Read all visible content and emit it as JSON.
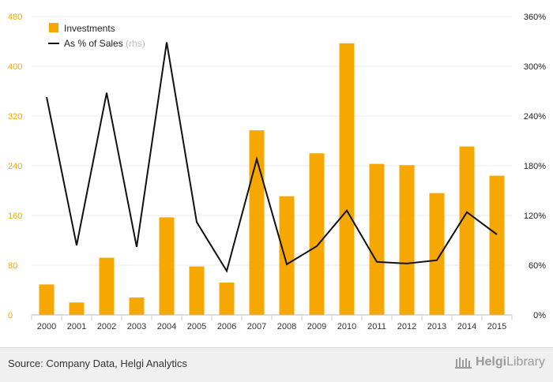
{
  "chart_data": {
    "type": "bar",
    "categories": [
      "2000",
      "2001",
      "2002",
      "2003",
      "2004",
      "2005",
      "2006",
      "2007",
      "2008",
      "2009",
      "2010",
      "2011",
      "2012",
      "2013",
      "2014",
      "2015"
    ],
    "series": [
      {
        "name": "Investments",
        "type": "bar",
        "axis": "left",
        "values": [
          49,
          20,
          92,
          28,
          157,
          78,
          52,
          297,
          191,
          260,
          437,
          243,
          241,
          196,
          271,
          224
        ]
      },
      {
        "name": "As % of Sales",
        "type": "line",
        "axis": "right",
        "values": [
          263,
          84,
          268,
          82,
          329,
          112,
          53,
          188,
          61,
          83,
          126,
          64,
          62,
          66,
          124,
          97
        ]
      }
    ],
    "legend": [
      {
        "label": "Investments",
        "suffix": ""
      },
      {
        "label": "As % of Sales",
        "suffix": " (rhs)"
      }
    ],
    "yleft": {
      "min": 0,
      "max": 480,
      "ticks": [
        "0",
        "80",
        "160",
        "240",
        "320",
        "400",
        "480"
      ]
    },
    "yright": {
      "min": 0,
      "max": 360,
      "ticks": [
        "0%",
        "60%",
        "120%",
        "180%",
        "240%",
        "300%",
        "360%"
      ]
    },
    "grid": true,
    "legend_position": "top-left",
    "colors": {
      "bar": "#f6a800",
      "line": "#111111",
      "left_axis": "#f6a800",
      "right_axis": "#222222",
      "grid": "#e8e8e8"
    }
  },
  "footer": {
    "source": "Source: Company Data, Helgi Analytics",
    "brand_bold": "Helgi",
    "brand_light": "Library"
  }
}
